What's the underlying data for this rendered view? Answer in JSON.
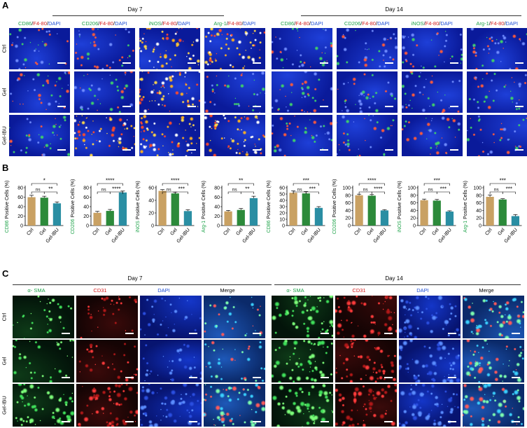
{
  "panelA": {
    "label": "A",
    "days": [
      "Day 7",
      "Day 14"
    ],
    "columns": [
      {
        "m": "CD86",
        "s": "/",
        "f": "F4-80",
        "s2": "/",
        "d": "DAPI",
        "color": "#1fa34a"
      },
      {
        "m": "CD206",
        "s": "/",
        "f": "F4-80",
        "s2": "/",
        "d": "DAPI",
        "color": "#1fa34a"
      },
      {
        "m": "iNOS",
        "s": "/",
        "f": "F4-80",
        "s2": "/",
        "d": "DAPI",
        "color": "#1fa34a"
      },
      {
        "m": "Arg-1",
        "s": "/",
        "f": "F4-80",
        "s2": "/",
        "d": "DAPI",
        "color": "#1fa34a"
      },
      {
        "m": "CD86",
        "s": "/",
        "f": "F4-80",
        "s2": "/",
        "d": "DAPI",
        "color": "#1fa34a"
      },
      {
        "m": "CD206",
        "s": "/",
        "f": "F4-80",
        "s2": "/",
        "d": "DAPI",
        "color": "#1fa34a"
      },
      {
        "m": "iNOS",
        "s": "/",
        "f": "F4-80",
        "s2": "/",
        "d": "DAPI",
        "color": "#1fa34a"
      },
      {
        "m": "Arg-1",
        "s": "/",
        "f": "F4-80",
        "s2": "/",
        "d": "DAPI",
        "color": "#1fa34a"
      }
    ],
    "rows": [
      "Ctrl",
      "Gel",
      "Gel-IBU"
    ]
  },
  "panelB": {
    "label": "B",
    "chart_data": [
      {
        "type": "bar",
        "ylabel_prefix": "",
        "ylabel_marker": "CD86",
        "ylabel_suffix": " Positive Cells (%)",
        "marker_color": "#1fa34a",
        "categories": [
          "Ctrl",
          "Gel",
          "Gel-IBU"
        ],
        "values": [
          60,
          59,
          47
        ],
        "errors": [
          4,
          3,
          3
        ],
        "ylim": [
          0,
          80
        ],
        "ticks": [
          "0",
          "20",
          "40",
          "60",
          "80"
        ],
        "sig": [
          {
            "a": 0,
            "b": 1,
            "t": "ns"
          },
          {
            "a": 1,
            "b": 2,
            "t": "**"
          },
          {
            "a": 0,
            "b": 2,
            "t": "*"
          }
        ]
      },
      {
        "type": "bar",
        "ylabel_prefix": "",
        "ylabel_marker": "CD206",
        "ylabel_suffix": " Positive Cells (%)",
        "marker_color": "#1fa34a",
        "categories": [
          "Ctrl",
          "Gel",
          "Gel-IBU"
        ],
        "values": [
          27,
          31,
          70
        ],
        "errors": [
          3,
          3,
          3
        ],
        "ylim": [
          0,
          80
        ],
        "ticks": [
          "0",
          "20",
          "40",
          "60",
          "80"
        ],
        "sig": [
          {
            "a": 0,
            "b": 1,
            "t": "ns"
          },
          {
            "a": 1,
            "b": 2,
            "t": "****"
          },
          {
            "a": 0,
            "b": 2,
            "t": "****"
          }
        ]
      },
      {
        "type": "bar",
        "ylabel_prefix": "",
        "ylabel_marker": "iNOS",
        "ylabel_suffix": " Positive Cells (%)",
        "marker_color": "#1fa34a",
        "categories": [
          "Ctrl",
          "Gel",
          "Gel-IBU"
        ],
        "values": [
          55,
          51,
          23
        ],
        "errors": [
          2,
          2,
          2
        ],
        "ylim": [
          0,
          60
        ],
        "ticks": [
          "0",
          "20",
          "40",
          "60"
        ],
        "sig": [
          {
            "a": 0,
            "b": 1,
            "t": "ns"
          },
          {
            "a": 1,
            "b": 2,
            "t": "***"
          },
          {
            "a": 0,
            "b": 2,
            "t": "****"
          }
        ]
      },
      {
        "type": "bar",
        "ylabel_prefix": "",
        "ylabel_marker": "Arg-1",
        "ylabel_suffix": " Positive Cells (%)",
        "marker_color": "#1fa34a",
        "categories": [
          "Ctrl",
          "Gel",
          "Gel-IBU"
        ],
        "values": [
          30,
          33,
          58
        ],
        "errors": [
          2,
          3,
          4
        ],
        "ylim": [
          0,
          80
        ],
        "ticks": [
          "0",
          "20",
          "40",
          "60",
          "80"
        ],
        "sig": [
          {
            "a": 0,
            "b": 1,
            "t": "ns"
          },
          {
            "a": 1,
            "b": 2,
            "t": "**"
          },
          {
            "a": 0,
            "b": 2,
            "t": "**"
          }
        ]
      },
      {
        "type": "bar",
        "ylabel_prefix": "",
        "ylabel_marker": "CD86",
        "ylabel_suffix": " Positive Cells (%)",
        "marker_color": "#1fa34a",
        "categories": [
          "Ctrl",
          "Gel",
          "Gel-IBU"
        ],
        "values": [
          52,
          51,
          28
        ],
        "errors": [
          3,
          3,
          2
        ],
        "ylim": [
          0,
          60
        ],
        "ticks": [
          "0",
          "10",
          "20",
          "30",
          "40",
          "50",
          "60"
        ],
        "sig": [
          {
            "a": 0,
            "b": 1,
            "t": "ns"
          },
          {
            "a": 1,
            "b": 2,
            "t": "***"
          },
          {
            "a": 0,
            "b": 2,
            "t": "***"
          }
        ]
      },
      {
        "type": "bar",
        "ylabel_prefix": "",
        "ylabel_marker": "CD206",
        "ylabel_suffix": " Positive Cells (%)",
        "marker_color": "#1fa34a",
        "categories": [
          "Ctrl",
          "Gel",
          "Gel-IBU"
        ],
        "values": [
          80,
          79,
          40
        ],
        "errors": [
          3,
          3,
          2
        ],
        "ylim": [
          0,
          100
        ],
        "ticks": [
          "0",
          "20",
          "40",
          "60",
          "80",
          "100"
        ],
        "sig": [
          {
            "a": 0,
            "b": 1,
            "t": "ns"
          },
          {
            "a": 1,
            "b": 2,
            "t": "****"
          },
          {
            "a": 0,
            "b": 2,
            "t": "****"
          }
        ]
      },
      {
        "type": "bar",
        "ylabel_prefix": "",
        "ylabel_marker": "iNOS",
        "ylabel_suffix": " Positive Cells (%)",
        "marker_color": "#1fa34a",
        "categories": [
          "Ctrl",
          "Gel",
          "Gel-IBU"
        ],
        "values": [
          67,
          66,
          37
        ],
        "errors": [
          3,
          3,
          2
        ],
        "ylim": [
          0,
          100
        ],
        "ticks": [
          "0",
          "20",
          "40",
          "60",
          "80",
          "100"
        ],
        "sig": [
          {
            "a": 0,
            "b": 1,
            "t": "ns"
          },
          {
            "a": 1,
            "b": 2,
            "t": "***"
          },
          {
            "a": 0,
            "b": 2,
            "t": "***"
          }
        ]
      },
      {
        "type": "bar",
        "ylabel_prefix": "",
        "ylabel_marker": "Arg-1",
        "ylabel_suffix": " Positive Cells (%)",
        "marker_color": "#1fa34a",
        "categories": [
          "Ctrl",
          "Gel",
          "Gel-IBU"
        ],
        "values": [
          76,
          69,
          25
        ],
        "errors": [
          5,
          2,
          4
        ],
        "ylim": [
          0,
          100
        ],
        "ticks": [
          "0",
          "20",
          "40",
          "60",
          "80",
          "100"
        ],
        "sig": [
          {
            "a": 0,
            "b": 1,
            "t": "ns"
          },
          {
            "a": 1,
            "b": 2,
            "t": "***"
          },
          {
            "a": 0,
            "b": 2,
            "t": "***"
          }
        ]
      }
    ],
    "bar_colors": [
      "#c9a163",
      "#2c8a3a",
      "#2a8ea3"
    ]
  },
  "panelC": {
    "label": "C",
    "days": [
      "Day 7",
      "Day 14"
    ],
    "columns": [
      {
        "t": "α- SMA",
        "color": "#1fa34a"
      },
      {
        "t": "CD31",
        "color": "#d62020"
      },
      {
        "t": "DAPI",
        "color": "#1f4fd6"
      },
      {
        "t": "Merge",
        "color": "#000000"
      },
      {
        "t": "α- SMA",
        "color": "#1fa34a"
      },
      {
        "t": "CD31",
        "color": "#d62020"
      },
      {
        "t": "DAPI",
        "color": "#1f4fd6"
      },
      {
        "t": "Merge",
        "color": "#000000"
      }
    ],
    "rows": [
      "Ctrl",
      "Gel",
      "Gel-IBU"
    ]
  }
}
